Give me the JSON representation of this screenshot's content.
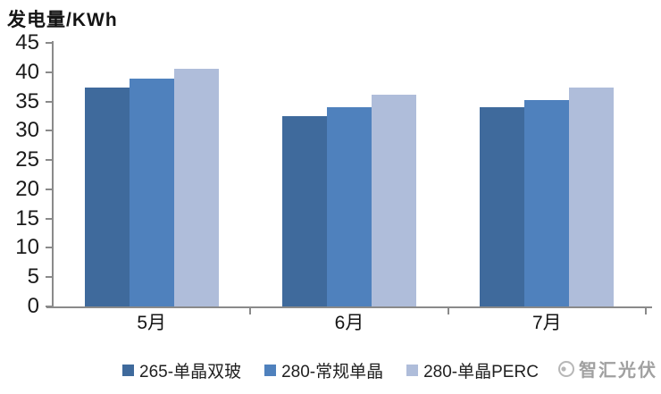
{
  "chart_data": {
    "type": "bar",
    "title": "发电量/KWh",
    "categories": [
      "5月",
      "6月",
      "7月"
    ],
    "series": [
      {
        "name": "265-单晶双玻",
        "color": "#3f6a9c",
        "values": [
          37.4,
          32.5,
          34.0
        ]
      },
      {
        "name": "280-常规单晶",
        "color": "#4f81bd",
        "values": [
          38.9,
          34.0,
          35.3
        ]
      },
      {
        "name": "280-单晶PERC",
        "color": "#afbdda",
        "values": [
          40.6,
          36.1,
          37.4
        ]
      }
    ],
    "xlabel": "",
    "ylabel": "发电量/KWh",
    "ylim": [
      0,
      45
    ],
    "yticks": [
      0,
      5,
      10,
      15,
      20,
      25,
      30,
      35,
      40,
      45
    ],
    "grid": false,
    "legend_position": "bottom"
  },
  "axis": {
    "color": "#8a8a8a"
  },
  "watermark": {
    "text": "智汇光伏",
    "icon": "sun-logo-icon",
    "color": "#a0a0a0"
  }
}
